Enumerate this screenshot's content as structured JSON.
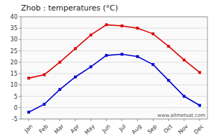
{
  "chart_data": {
    "type": "line",
    "title": "Zhob : temperatures (°C)",
    "categories": [
      "Jan",
      "Feb",
      "Mar",
      "Apr",
      "May",
      "Jun",
      "Jul",
      "Aug",
      "Sep",
      "Oct",
      "Nov",
      "Dec"
    ],
    "series": [
      {
        "color": "#dd0000",
        "marker": "square",
        "values": [
          13,
          14.5,
          20,
          26,
          32,
          36.5,
          36,
          35,
          32.5,
          27,
          21,
          15.5
        ]
      },
      {
        "color": "#0000cc",
        "marker": "square",
        "values": [
          -2,
          1.5,
          8,
          13.5,
          18,
          23,
          23.5,
          22.5,
          19,
          12,
          5,
          1
        ]
      }
    ],
    "ylim": [
      -5,
      40
    ],
    "yticks": [
      -5,
      0,
      5,
      10,
      15,
      20,
      25,
      30,
      35,
      40
    ],
    "grid": true,
    "annotations": [
      "www.allmetsat.com"
    ]
  }
}
